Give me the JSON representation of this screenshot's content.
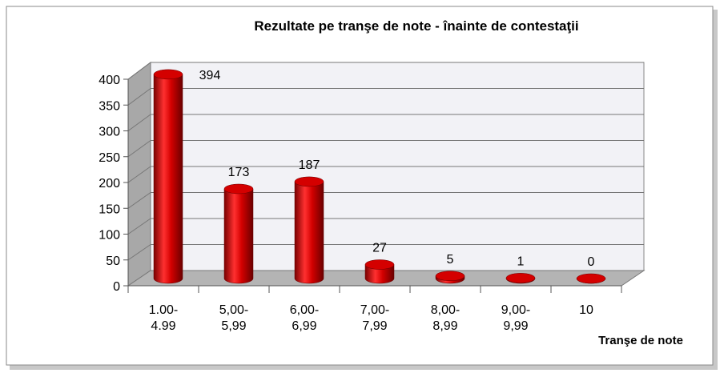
{
  "chart_data": {
    "type": "bar3d",
    "title": "Rezultate pe tranşe de note - înainte de contestaţii",
    "x_label": "Tranşe de note",
    "categories": [
      "1.00-4.99",
      "5,00-5,99",
      "6,00-6,99",
      "7,00-7,99",
      "8,00-8,99",
      "9,00-9,99",
      "10"
    ],
    "values": [
      394,
      173,
      187,
      27,
      5,
      1,
      0
    ],
    "color": "#d40000",
    "ylim": [
      0,
      400
    ],
    "yticks": [
      0,
      50,
      100,
      150,
      200,
      250,
      300,
      350,
      400
    ],
    "grid": true
  }
}
